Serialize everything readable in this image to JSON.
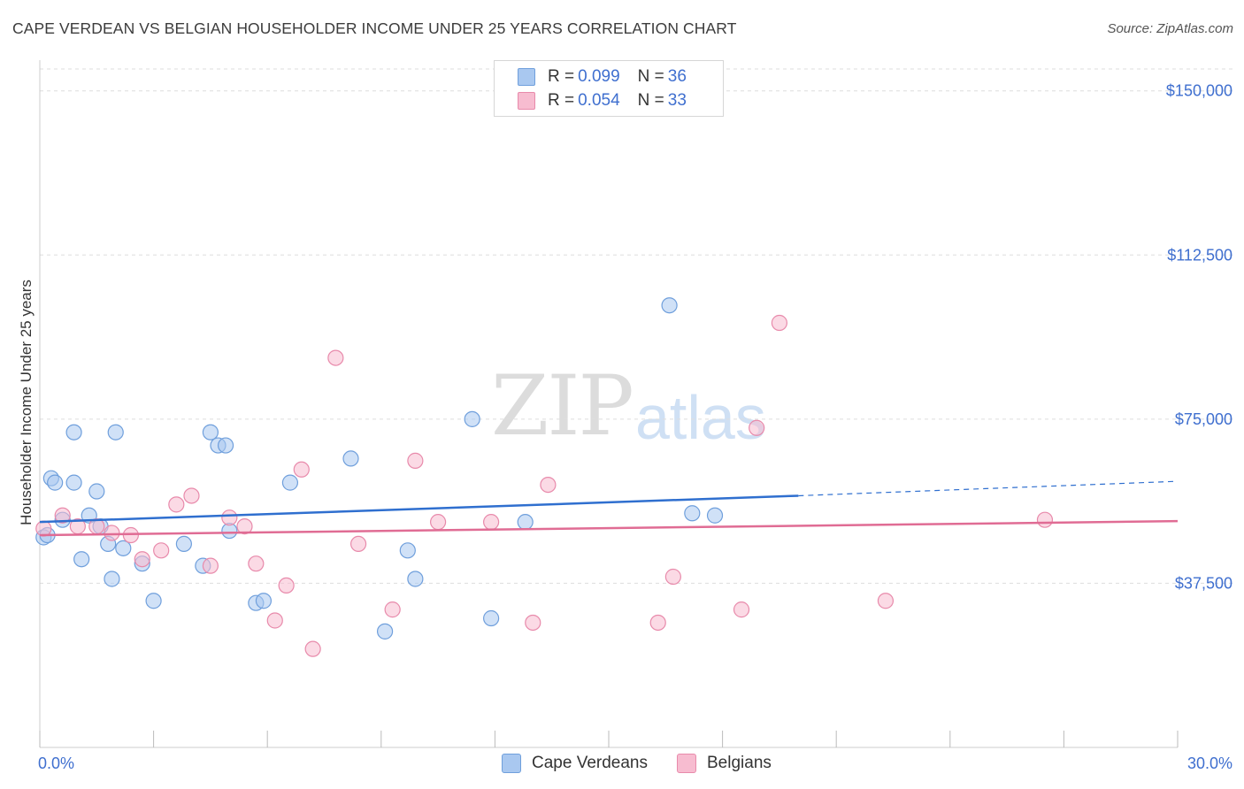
{
  "header": {
    "title": "CAPE VERDEAN VS BELGIAN HOUSEHOLDER INCOME UNDER 25 YEARS CORRELATION CHART",
    "source": "Source: ZipAtlas.com"
  },
  "watermark": {
    "zip": "ZIP",
    "atlas": "atlas"
  },
  "legend_top": [
    {
      "r_label": "R = ",
      "r_value": "0.099",
      "n_label": "N = ",
      "n_value": "36",
      "color": "#a9c8f0"
    },
    {
      "r_label": "R = ",
      "r_value": "0.054",
      "n_label": "N = ",
      "n_value": "33",
      "color": "#f7bcd0"
    }
  ],
  "colors": {
    "blue_fill": "#a9c8f0",
    "blue_stroke": "#6f9fdc",
    "blue_line": "#2f6fcf",
    "pink_fill": "#f7bcd0",
    "pink_stroke": "#e88aab",
    "pink_line": "#e06c94",
    "axis_text": "#3f6fcf"
  },
  "chart_data": {
    "type": "scatter",
    "title": "CAPE VERDEAN VS BELGIAN HOUSEHOLDER INCOME UNDER 25 YEARS CORRELATION CHART",
    "xlabel": "",
    "ylabel": "Householder Income Under 25 years",
    "xlim": [
      0,
      30
    ],
    "ylim": [
      0,
      155000
    ],
    "x_tick_labels": [
      "0.0%",
      "30.0%"
    ],
    "y_ticks": [
      37500,
      75000,
      112500,
      150000
    ],
    "y_tick_labels": [
      "$37,500",
      "$75,000",
      "$112,500",
      "$150,000"
    ],
    "grid": "horizontal dashed",
    "legend_placement": "bottom",
    "series": [
      {
        "name": "Cape Verdeans",
        "r": 0.099,
        "n": 36,
        "trend": {
          "x0": 0,
          "y0": 51500,
          "x1": 20,
          "y1": 57500,
          "dashed_to_x": 30,
          "dashed_to_y": 60800
        },
        "points": [
          [
            0.1,
            48000
          ],
          [
            0.2,
            48500
          ],
          [
            0.3,
            61500
          ],
          [
            0.4,
            60500
          ],
          [
            0.6,
            52000
          ],
          [
            0.9,
            72000
          ],
          [
            0.9,
            60500
          ],
          [
            1.1,
            43000
          ],
          [
            1.3,
            53000
          ],
          [
            1.5,
            58500
          ],
          [
            1.6,
            50500
          ],
          [
            1.8,
            46500
          ],
          [
            1.9,
            38500
          ],
          [
            2.0,
            72000
          ],
          [
            2.2,
            45500
          ],
          [
            2.7,
            42000
          ],
          [
            3.0,
            33500
          ],
          [
            3.8,
            46500
          ],
          [
            4.3,
            41500
          ],
          [
            4.5,
            72000
          ],
          [
            4.7,
            69000
          ],
          [
            4.9,
            69000
          ],
          [
            5.0,
            49500
          ],
          [
            5.7,
            33000
          ],
          [
            5.9,
            33500
          ],
          [
            6.6,
            60500
          ],
          [
            8.2,
            66000
          ],
          [
            9.1,
            26500
          ],
          [
            9.7,
            45000
          ],
          [
            9.9,
            38500
          ],
          [
            11.4,
            75000
          ],
          [
            11.9,
            29500
          ],
          [
            12.8,
            51500
          ],
          [
            16.6,
            101000
          ],
          [
            17.2,
            53500
          ],
          [
            17.8,
            53000
          ]
        ]
      },
      {
        "name": "Belgians",
        "r": 0.054,
        "n": 33,
        "trend": {
          "x0": 0,
          "y0": 48500,
          "x1": 30,
          "y1": 51700
        },
        "points": [
          [
            0.1,
            50000
          ],
          [
            0.6,
            53000
          ],
          [
            1.0,
            50500
          ],
          [
            1.5,
            50500
          ],
          [
            1.9,
            49000
          ],
          [
            2.4,
            48500
          ],
          [
            2.7,
            43000
          ],
          [
            3.2,
            45000
          ],
          [
            3.6,
            55500
          ],
          [
            4.0,
            57500
          ],
          [
            4.5,
            41500
          ],
          [
            5.0,
            52500
          ],
          [
            5.4,
            50500
          ],
          [
            5.7,
            42000
          ],
          [
            6.2,
            29000
          ],
          [
            6.5,
            37000
          ],
          [
            6.9,
            63500
          ],
          [
            7.2,
            22500
          ],
          [
            7.8,
            89000
          ],
          [
            8.4,
            46500
          ],
          [
            9.3,
            31500
          ],
          [
            9.9,
            65500
          ],
          [
            10.5,
            51500
          ],
          [
            11.9,
            51500
          ],
          [
            13.0,
            28500
          ],
          [
            13.4,
            60000
          ],
          [
            16.3,
            28500
          ],
          [
            16.7,
            39000
          ],
          [
            18.5,
            31500
          ],
          [
            18.9,
            73000
          ],
          [
            19.5,
            97000
          ],
          [
            22.3,
            33500
          ],
          [
            26.5,
            52000
          ]
        ]
      }
    ]
  },
  "legend_bottom": [
    {
      "label": "Cape Verdeans",
      "color": "#a9c8f0"
    },
    {
      "label": "Belgians",
      "color": "#f7bcd0"
    }
  ]
}
